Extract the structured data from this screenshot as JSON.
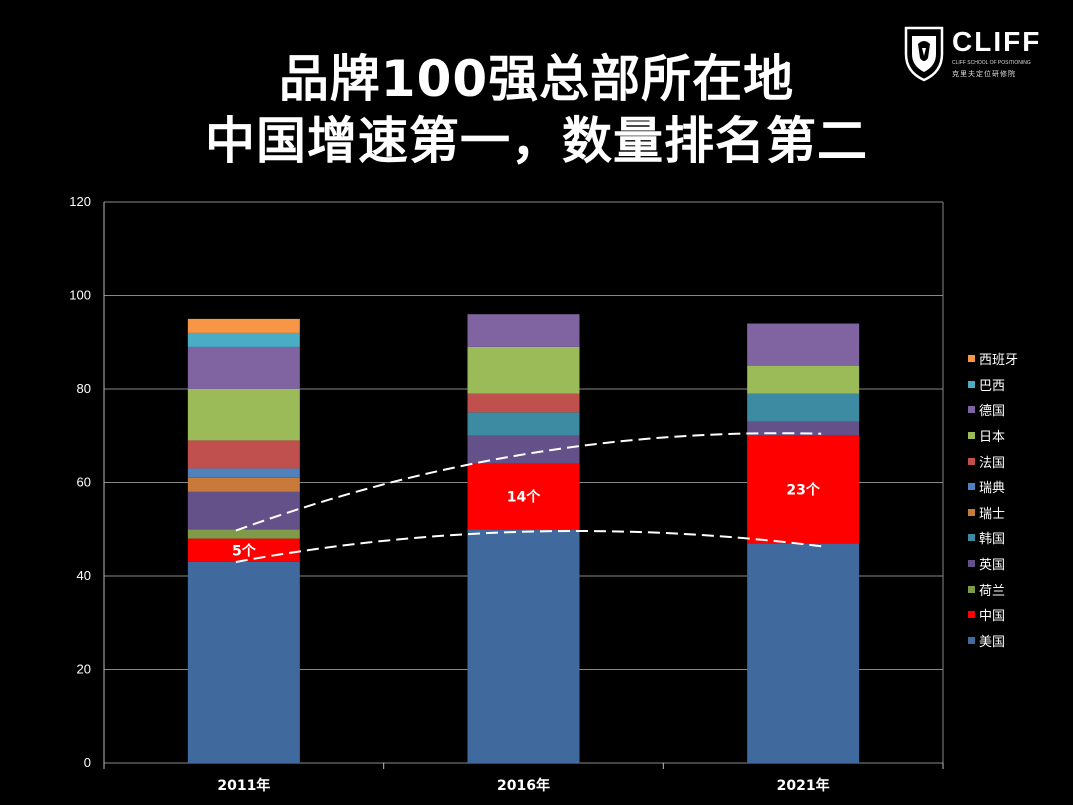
{
  "title": {
    "line1": "品牌100强总部所在地",
    "line2": "中国增速第一，数量排名第二"
  },
  "logo": {
    "name": "CLIFF",
    "subtitle": "CLIFF SCHOOL OF POSITIONING",
    "chinese": "克里夫定位研修院"
  },
  "chart_data": {
    "type": "bar",
    "stacked": true,
    "categories": [
      "2011年",
      "2016年",
      "2021年"
    ],
    "ylim": [
      0,
      120
    ],
    "yticks": [
      0,
      20,
      40,
      60,
      80,
      100,
      120
    ],
    "grid": true,
    "legend_position": "right",
    "series": [
      {
        "name": "美国",
        "color": "#406a9e",
        "values": [
          43,
          50,
          47
        ]
      },
      {
        "name": "中国",
        "color": "#ff0000",
        "values": [
          5,
          14,
          23
        ]
      },
      {
        "name": "荷兰",
        "color": "#7f9a48",
        "values": [
          2,
          0,
          0
        ]
      },
      {
        "name": "英国",
        "color": "#65518a",
        "values": [
          8,
          6,
          3
        ]
      },
      {
        "name": "韩国",
        "color": "#3c8ba3",
        "values": [
          0,
          5,
          6
        ]
      },
      {
        "name": "瑞士",
        "color": "#c87a3a",
        "values": [
          3,
          0,
          0
        ]
      },
      {
        "name": "瑞典",
        "color": "#4f81bd",
        "values": [
          2,
          0,
          0
        ]
      },
      {
        "name": "法国",
        "color": "#c0504d",
        "values": [
          6,
          4,
          0
        ]
      },
      {
        "name": "日本",
        "color": "#9bbb59",
        "values": [
          11,
          10,
          6
        ]
      },
      {
        "name": "德国",
        "color": "#8064a2",
        "values": [
          9,
          7,
          9
        ]
      },
      {
        "name": "巴西",
        "color": "#4bacc6",
        "values": [
          3,
          0,
          0
        ]
      },
      {
        "name": "西班牙",
        "color": "#f79646",
        "values": [
          3,
          0,
          0
        ]
      }
    ],
    "annotations": [
      {
        "category": "2011年",
        "text": "5个"
      },
      {
        "category": "2016年",
        "text": "14个"
      },
      {
        "category": "2021年",
        "text": "23个"
      }
    ]
  }
}
